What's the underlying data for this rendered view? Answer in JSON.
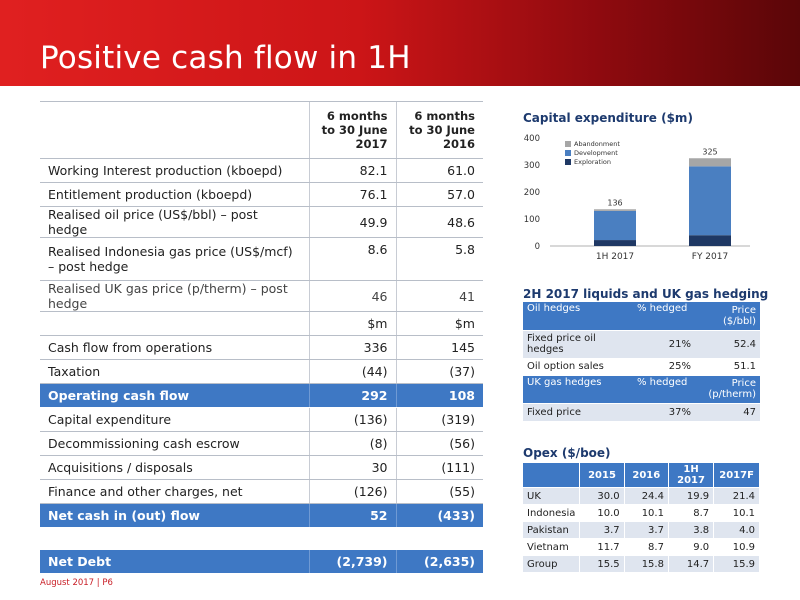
{
  "title": "Positive cash flow in 1H",
  "footer": "August 2017 | P6",
  "main_table": {
    "col1": "6 months to 30 June 2017",
    "col2": "6 months to 30 June 2016",
    "rows": [
      {
        "label": "Working Interest production (kboepd)",
        "v1": "82.1",
        "v2": "61.0"
      },
      {
        "label": "Entitlement production (kboepd)",
        "v1": "76.1",
        "v2": "57.0"
      },
      {
        "label": "Realised oil price (US$/bbl) – post hedge",
        "v1": "49.9",
        "v2": "48.6"
      },
      {
        "label": "Realised Indonesia gas price (US$/mcf) – post hedge",
        "v1": "8.6",
        "v2": "5.8"
      },
      {
        "label": "Realised UK gas price (p/therm) – post hedge",
        "v1": "46",
        "v2": "41"
      }
    ],
    "unit1": "$m",
    "unit2": "$m",
    "cash_rows": [
      {
        "label": "Cash flow from operations",
        "v1": "336",
        "v2": "145"
      },
      {
        "label": "Taxation",
        "v1": "(44)",
        "v2": "(37)"
      },
      {
        "label": "Operating cash flow",
        "v1": "292",
        "v2": "108"
      },
      {
        "label": "Capital expenditure",
        "v1": "(136)",
        "v2": "(319)"
      },
      {
        "label": "Decommissioning cash escrow",
        "v1": "(8)",
        "v2": "(56)"
      },
      {
        "label": "Acquisitions / disposals",
        "v1": "30",
        "v2": "(111)"
      },
      {
        "label": "Finance and other charges, net",
        "v1": "(126)",
        "v2": "(55)"
      },
      {
        "label": "Net cash in (out) flow",
        "v1": "52",
        "v2": "(433)"
      }
    ],
    "net_debt": {
      "label": "Net Debt",
      "v1": "(2,739)",
      "v2": "(2,635)"
    }
  },
  "capex_title": "Capital expenditure ($m)",
  "chart_data": {
    "type": "bar",
    "stacked": true,
    "categories": [
      "1H 2017",
      "FY 2017"
    ],
    "series": [
      {
        "name": "Exploration",
        "values": [
          22,
          40
        ],
        "color": "#1f3864"
      },
      {
        "name": "Development",
        "values": [
          108,
          255
        ],
        "color": "#4a7fc1"
      },
      {
        "name": "Abandonment",
        "values": [
          6,
          30
        ],
        "color": "#a6a6a6"
      }
    ],
    "totals": [
      "136",
      "325"
    ],
    "ylim": [
      0,
      400
    ],
    "yticks": [
      "0",
      "100",
      "200",
      "300",
      "400"
    ],
    "legend": "top-left"
  },
  "hedging_title": "2H 2017 liquids and UK gas hedging",
  "hedging": {
    "oil_header": [
      "Oil hedges",
      "% hedged",
      "Price ($/bbl)"
    ],
    "oil_rows": [
      [
        "Fixed price oil hedges",
        "21%",
        "52.4"
      ],
      [
        "Oil option sales",
        "25%",
        "51.1"
      ]
    ],
    "gas_header": [
      "UK gas hedges",
      "% hedged",
      "Price (p/therm)"
    ],
    "gas_rows": [
      [
        "Fixed price",
        "37%",
        "47"
      ]
    ]
  },
  "opex_title": "Opex ($/boe)",
  "opex": {
    "header": [
      "",
      "2015",
      "2016",
      "1H 2017",
      "2017F"
    ],
    "rows": [
      [
        "UK",
        "30.0",
        "24.4",
        "19.9",
        "21.4"
      ],
      [
        "Indonesia",
        "10.0",
        "10.1",
        "8.7",
        "10.1"
      ],
      [
        "Pakistan",
        "3.7",
        "3.7",
        "3.8",
        "4.0"
      ],
      [
        "Vietnam",
        "11.7",
        "8.7",
        "9.0",
        "10.9"
      ],
      [
        "Group",
        "15.5",
        "15.8",
        "14.7",
        "15.9"
      ]
    ]
  }
}
